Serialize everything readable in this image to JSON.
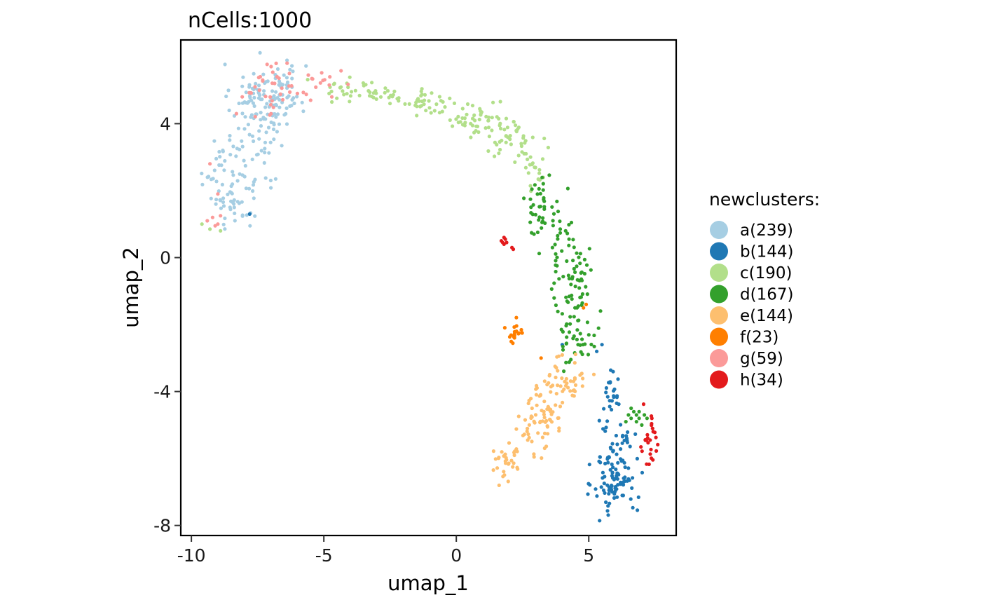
{
  "chart_data": {
    "type": "scatter",
    "title": "nCells:1000",
    "xlabel": "umap_1",
    "ylabel": "umap_2",
    "xlim": [
      -10.4,
      8.3
    ],
    "ylim": [
      -8.3,
      6.5
    ],
    "xticks": [
      -10,
      -5,
      0,
      5
    ],
    "xtick_labels": [
      "-10",
      "-5",
      "0",
      "5"
    ],
    "yticks": [
      -8,
      -4,
      0,
      4
    ],
    "ytick_labels": [
      "-8",
      "-4",
      "0",
      "4"
    ],
    "grid": false,
    "legend": {
      "title": "newclusters:",
      "position": "right"
    },
    "series": [
      {
        "name": "a(239)",
        "color": "#a6cee3",
        "clusters": [
          {
            "center": [
              -7.4,
              4.6
            ],
            "sd": [
              0.55,
              0.6
            ],
            "n": 95
          },
          {
            "center": [
              -6.6,
              5.1
            ],
            "sd": [
              0.45,
              0.4
            ],
            "n": 45
          },
          {
            "center": [
              -8.2,
              2.8
            ],
            "sd": [
              0.5,
              0.7
            ],
            "n": 40
          },
          {
            "center": [
              -8.4,
              1.6
            ],
            "sd": [
              0.45,
              0.35
            ],
            "n": 30
          },
          {
            "center": [
              -9.1,
              2.4
            ],
            "sd": [
              0.25,
              0.4
            ],
            "n": 14
          },
          {
            "center": [
              -7.2,
              2.4
            ],
            "sd": [
              0.35,
              0.6
            ],
            "n": 15
          }
        ],
        "points": []
      },
      {
        "name": "b(144)",
        "color": "#1f78b4",
        "clusters": [
          {
            "center": [
              6.0,
              -6.6
            ],
            "sd": [
              0.4,
              0.55
            ],
            "n": 95
          },
          {
            "center": [
              5.8,
              -4.3
            ],
            "sd": [
              0.25,
              0.5
            ],
            "n": 25
          },
          {
            "center": [
              6.2,
              -5.4
            ],
            "sd": [
              0.3,
              0.4
            ],
            "n": 20
          }
        ],
        "points": [
          [
            -7.8,
            1.3
          ],
          [
            4.0,
            -2.6
          ],
          [
            5.3,
            -2.8
          ],
          [
            5.5,
            -2.6
          ]
        ]
      },
      {
        "name": "c(190)",
        "color": "#b2df8a",
        "clusters": [
          {
            "center": [
              -3.3,
              5.0
            ],
            "sd": [
              0.9,
              0.2
            ],
            "n": 40
          },
          {
            "center": [
              -1.3,
              4.6
            ],
            "sd": [
              0.7,
              0.2
            ],
            "n": 35
          },
          {
            "center": [
              0.6,
              4.2
            ],
            "sd": [
              0.6,
              0.25
            ],
            "n": 45
          },
          {
            "center": [
              2.0,
              3.6
            ],
            "sd": [
              0.5,
              0.35
            ],
            "n": 45
          },
          {
            "center": [
              2.9,
              2.6
            ],
            "sd": [
              0.35,
              0.3
            ],
            "n": 20
          }
        ],
        "points": [
          [
            -9.6,
            1.0
          ],
          [
            -9.3,
            0.85
          ],
          [
            -8.9,
            0.8
          ],
          [
            -4.8,
            4.9
          ],
          [
            -4.6,
            5.2
          ]
        ]
      },
      {
        "name": "d(167)",
        "color": "#33a02c",
        "clusters": [
          {
            "center": [
              3.2,
              1.6
            ],
            "sd": [
              0.35,
              0.45
            ],
            "n": 40
          },
          {
            "center": [
              4.1,
              0.3
            ],
            "sd": [
              0.35,
              0.5
            ],
            "n": 35
          },
          {
            "center": [
              4.4,
              -1.0
            ],
            "sd": [
              0.45,
              0.5
            ],
            "n": 40
          },
          {
            "center": [
              4.6,
              -2.4
            ],
            "sd": [
              0.35,
              0.4
            ],
            "n": 40
          }
        ],
        "points": [
          [
            6.7,
            -4.6
          ],
          [
            6.9,
            -4.8
          ],
          [
            6.5,
            -4.7
          ],
          [
            7.0,
            -5.0
          ],
          [
            6.6,
            -4.5
          ],
          [
            6.8,
            -4.9
          ],
          [
            7.1,
            -4.7
          ],
          [
            6.4,
            -4.9
          ],
          [
            6.9,
            -4.6
          ],
          [
            7.2,
            -4.8
          ],
          [
            6.6,
            -4.8
          ],
          [
            6.8,
            -4.7
          ]
        ]
      },
      {
        "name": "e(144)",
        "color": "#fdbf6f",
        "clusters": [
          {
            "center": [
              4.2,
              -3.6
            ],
            "sd": [
              0.35,
              0.4
            ],
            "n": 40
          },
          {
            "center": [
              3.4,
              -4.4
            ],
            "sd": [
              0.4,
              0.4
            ],
            "n": 45
          },
          {
            "center": [
              2.8,
              -5.3
            ],
            "sd": [
              0.35,
              0.4
            ],
            "n": 30
          },
          {
            "center": [
              2.0,
              -6.1
            ],
            "sd": [
              0.4,
              0.25
            ],
            "n": 29
          }
        ],
        "points": []
      },
      {
        "name": "f(23)",
        "color": "#ff7f00",
        "clusters": [
          {
            "center": [
              2.2,
              -2.3
            ],
            "sd": [
              0.18,
              0.18
            ],
            "n": 20
          }
        ],
        "points": [
          [
            4.8,
            -1.5
          ],
          [
            4.9,
            -1.4
          ],
          [
            3.2,
            -3.0
          ]
        ]
      },
      {
        "name": "g(59)",
        "color": "#fb9a99",
        "clusters": [
          {
            "center": [
              -7.0,
              5.1
            ],
            "sd": [
              0.55,
              0.45
            ],
            "n": 30
          },
          {
            "center": [
              -5.0,
              5.2
            ],
            "sd": [
              0.35,
              0.2
            ],
            "n": 14
          }
        ],
        "points": [
          [
            -9.2,
            1.2
          ],
          [
            -9.0,
            1.0
          ],
          [
            -9.4,
            1.1
          ],
          [
            -8.9,
            1.25
          ],
          [
            -9.1,
            0.95
          ],
          [
            -9.0,
            1.9
          ],
          [
            -9.3,
            2.8
          ],
          [
            -6.8,
            5.8
          ],
          [
            -7.4,
            5.4
          ],
          [
            -5.5,
            4.7
          ],
          [
            -4.7,
            4.8
          ],
          [
            -6.0,
            4.9
          ],
          [
            -7.6,
            5.1
          ],
          [
            -8.3,
            4.3
          ],
          [
            -6.3,
            5.5
          ]
        ]
      },
      {
        "name": "h(34)",
        "color": "#e31a1c",
        "clusters": [
          {
            "center": [
              7.3,
              -5.6
            ],
            "sd": [
              0.18,
              0.5
            ],
            "n": 26
          }
        ],
        "points": [
          [
            1.7,
            0.5
          ],
          [
            1.8,
            0.4
          ],
          [
            1.85,
            0.55
          ],
          [
            1.75,
            0.45
          ],
          [
            2.1,
            0.3
          ],
          [
            2.15,
            0.25
          ],
          [
            1.9,
            0.45
          ],
          [
            1.8,
            0.6
          ]
        ]
      }
    ]
  }
}
